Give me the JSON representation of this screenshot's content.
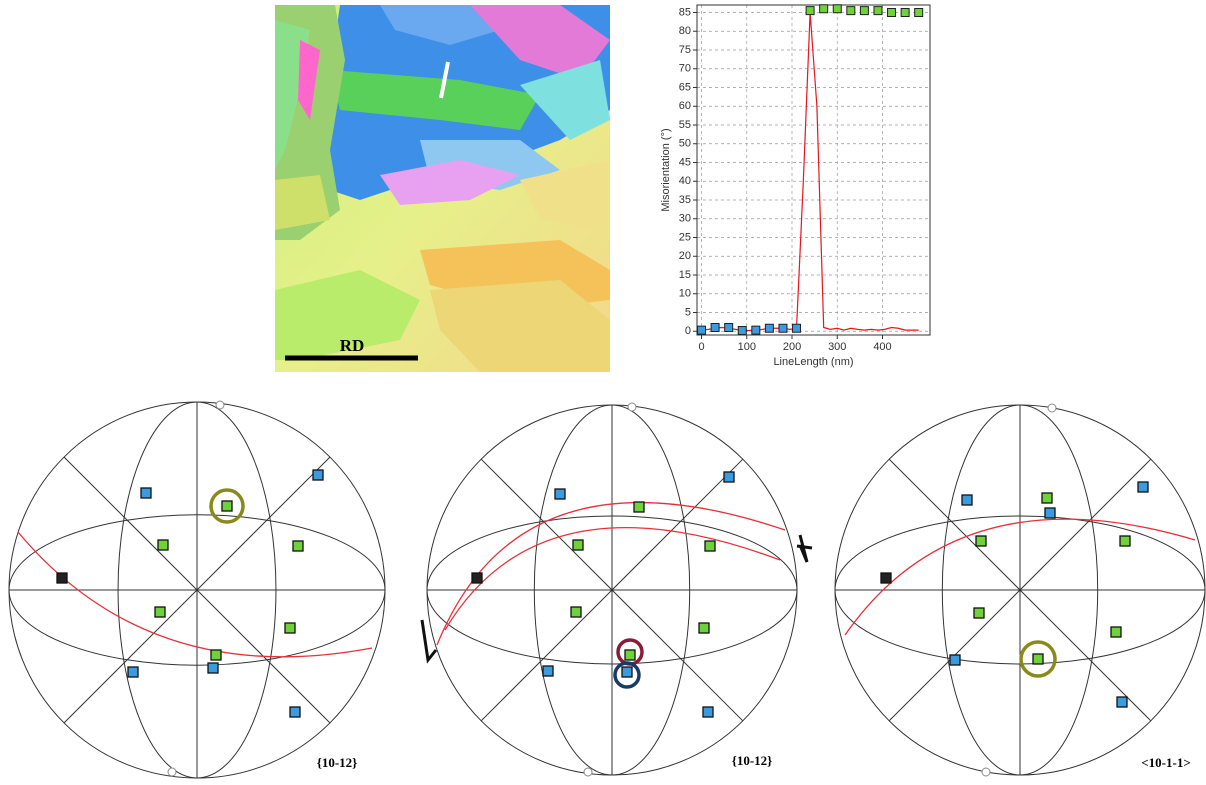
{
  "map": {
    "label": "RD"
  },
  "chart_data": {
    "type": "line",
    "x_label": "LineLength (nm)",
    "y_label": "Misorientation (°)",
    "xlim": [
      -10,
      505
    ],
    "xticks": [
      0,
      100,
      200,
      300,
      400
    ],
    "ylim": [
      -1,
      87
    ],
    "yticks": [
      0,
      5,
      10,
      15,
      20,
      25,
      30,
      35,
      40,
      45,
      50,
      55,
      60,
      65,
      70,
      75,
      80,
      85
    ],
    "grid": true,
    "series": [
      {
        "color": "#e8141e",
        "marker": "none",
        "x": [
          0,
          15,
          30,
          45,
          60,
          75,
          90,
          105,
          120,
          135,
          150,
          165,
          180,
          195,
          210,
          225,
          240,
          255,
          270,
          285,
          300,
          315,
          330,
          345,
          360,
          375,
          390,
          405,
          420,
          435,
          450,
          465,
          480
        ],
        "values": [
          0.3,
          0.5,
          0.8,
          1,
          0.8,
          0.5,
          0.2,
          0.2,
          0.3,
          0.5,
          0.8,
          0.8,
          0.8,
          0.5,
          0.8,
          40,
          85,
          60,
          1,
          0.5,
          0.8,
          0.3,
          0.8,
          0.5,
          0.3,
          0.5,
          0.3,
          0.5,
          1,
          0.8,
          0.3,
          0.3,
          0.3
        ]
      },
      {
        "color": "#3a9be0",
        "marker": "square",
        "x": [
          0,
          30,
          60,
          90,
          120,
          150,
          180,
          210
        ],
        "values": [
          0.3,
          1,
          1,
          0.2,
          0.3,
          0.8,
          0.8,
          0.8
        ]
      },
      {
        "color": "#6fd23a",
        "marker": "square",
        "x": [
          240,
          270,
          300,
          330,
          360,
          390,
          420,
          450,
          480
        ],
        "values": [
          85.5,
          86,
          86,
          85.5,
          85.5,
          85.5,
          85,
          85,
          85
        ]
      }
    ]
  },
  "pole_figures": [
    {
      "label": "{10-12}"
    },
    {
      "label": "{10-12}"
    },
    {
      "label": "<10-1-1>"
    }
  ]
}
